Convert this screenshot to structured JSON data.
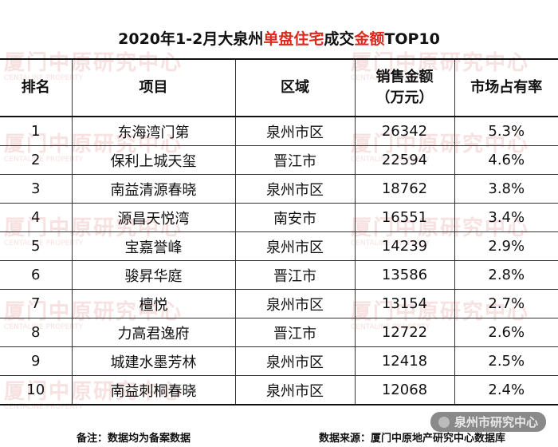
{
  "chart_data": {
    "type": "table",
    "title_parts": [
      {
        "text": "2020年1-2月大泉州",
        "highlight": false
      },
      {
        "text": "单盘住宅",
        "highlight": true
      },
      {
        "text": "成交",
        "highlight": false
      },
      {
        "text": "金额",
        "highlight": true
      },
      {
        "text": "TOP10",
        "highlight": false
      }
    ],
    "columns": [
      "排名",
      "项目",
      "区域",
      "销售金额",
      "（万元）",
      "市场占有率"
    ],
    "rows": [
      {
        "rank": "1",
        "project": "东海湾门第",
        "region": "泉州市区",
        "sales": "26342",
        "share": "5.3%"
      },
      {
        "rank": "2",
        "project": "保利上城天玺",
        "region": "晋江市",
        "sales": "22594",
        "share": "4.6%"
      },
      {
        "rank": "3",
        "project": "南益清源春晓",
        "region": "泉州市区",
        "sales": "18762",
        "share": "3.8%"
      },
      {
        "rank": "4",
        "project": "源昌天悦湾",
        "region": "南安市",
        "sales": "16551",
        "share": "3.4%"
      },
      {
        "rank": "5",
        "project": "宝嘉誉峰",
        "region": "泉州市区",
        "sales": "14239",
        "share": "2.9%"
      },
      {
        "rank": "6",
        "project": "骏昇华庭",
        "region": "晋江市",
        "sales": "13586",
        "share": "2.8%"
      },
      {
        "rank": "7",
        "project": "檀悦",
        "region": "泉州市区",
        "sales": "13154",
        "share": "2.7%"
      },
      {
        "rank": "8",
        "project": "力高君逸府",
        "region": "晋江市",
        "sales": "12722",
        "share": "2.6%"
      },
      {
        "rank": "9",
        "project": "城建水墨芳林",
        "region": "泉州市区",
        "sales": "12418",
        "share": "2.5%"
      },
      {
        "rank": "10",
        "project": "南益刺桐春晓",
        "region": "泉州市区",
        "sales": "12068",
        "share": "2.4%"
      }
    ]
  },
  "footer": {
    "note": "备注：数据均为备案数据",
    "source": "数据来源：厦门中原地产研究中心数据库"
  },
  "watermark": {
    "text": "厦门中原研究中心",
    "subtext": "CENTALINE PROPERTY",
    "color": "#f1caca"
  },
  "badge": {
    "text": "泉州市研究中心"
  },
  "colors": {
    "highlight": "#e0281e",
    "border": "#333333"
  }
}
